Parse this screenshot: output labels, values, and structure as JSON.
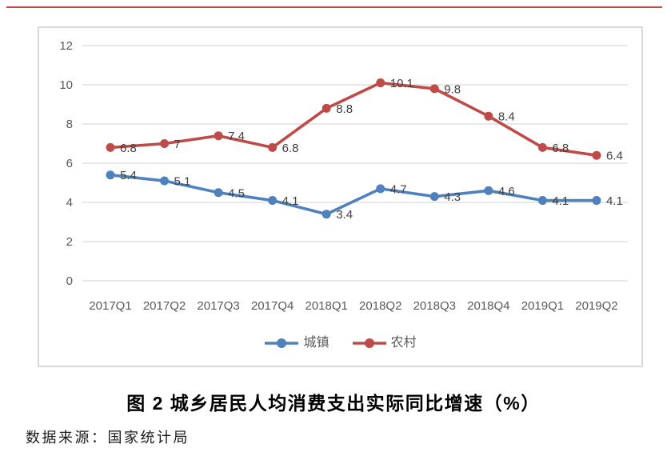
{
  "page": {
    "top_rule_color": "#be4b48",
    "caption": "图 2 城乡居民人均消费支出实际同比增速（%）",
    "source": "数据来源：国家统计局"
  },
  "chart_data": {
    "type": "line",
    "title": "",
    "xlabel": "",
    "ylabel": "",
    "categories": [
      "2017Q1",
      "2017Q2",
      "2017Q3",
      "2017Q4",
      "2018Q1",
      "2018Q2",
      "2018Q3",
      "2018Q4",
      "2019Q1",
      "2019Q2"
    ],
    "series": [
      {
        "name": "城镇",
        "color": "#4f81bd",
        "values": [
          5.4,
          5.1,
          4.5,
          4.1,
          3.4,
          4.7,
          4.3,
          4.6,
          4.1,
          4.1
        ]
      },
      {
        "name": "农村",
        "color": "#be4b48",
        "values": [
          6.8,
          7,
          7.4,
          6.8,
          8.8,
          10.1,
          9.8,
          8.4,
          6.8,
          6.4
        ]
      }
    ],
    "ylim": [
      0,
      12
    ],
    "yticks": [
      0,
      2,
      4,
      6,
      8,
      10,
      12
    ],
    "grid": true,
    "data_labels": true,
    "legend_position": "bottom",
    "axis_text_color": "#595959",
    "data_label_color": "#404040",
    "grid_color": "#d9d9d9"
  }
}
